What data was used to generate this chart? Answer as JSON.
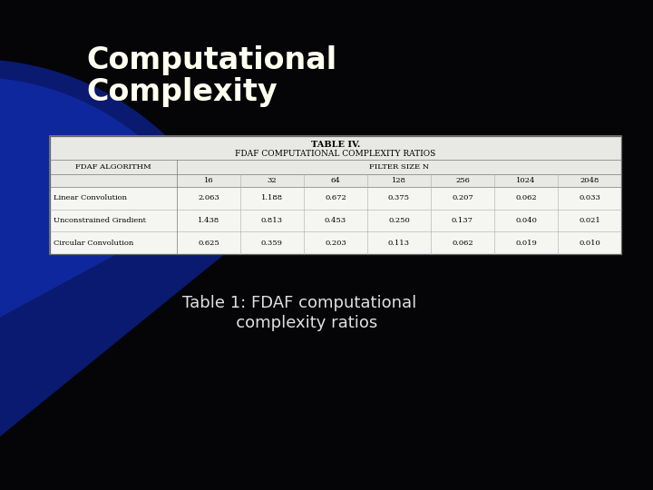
{
  "title_line1": "Computational",
  "title_line2": "Complexity",
  "title_color": "#FFFFF0",
  "bg_color": "#050508",
  "table_title_line1": "TABLE IV.",
  "table_title_line2": "FDAF COMPUTATIONAL COMPLEXITY RATIOS",
  "col_header_left": "FDAF ALGORITHM",
  "col_header_right": "FILTER SIZE N",
  "filter_sizes": [
    "16",
    "32",
    "64",
    "128",
    "256",
    "1024",
    "2048"
  ],
  "algorithms": [
    "Linear Convolution",
    "Unconstrained Gradient",
    "Circular Convolution"
  ],
  "data": [
    [
      2.063,
      1.188,
      0.672,
      0.375,
      0.207,
      0.062,
      0.033
    ],
    [
      1.438,
      0.813,
      0.453,
      0.25,
      0.137,
      0.04,
      0.021
    ],
    [
      0.625,
      0.359,
      0.203,
      0.113,
      0.062,
      0.019,
      0.01
    ]
  ],
  "caption_line1": "Table 1: FDAF computational",
  "caption_line2": "   complexity ratios",
  "caption_color": "#E0E0E0",
  "table_bg": "#F0F0EC",
  "blue_shape_color": "#0a1a70",
  "blue_shape_color2": "#1535c8"
}
